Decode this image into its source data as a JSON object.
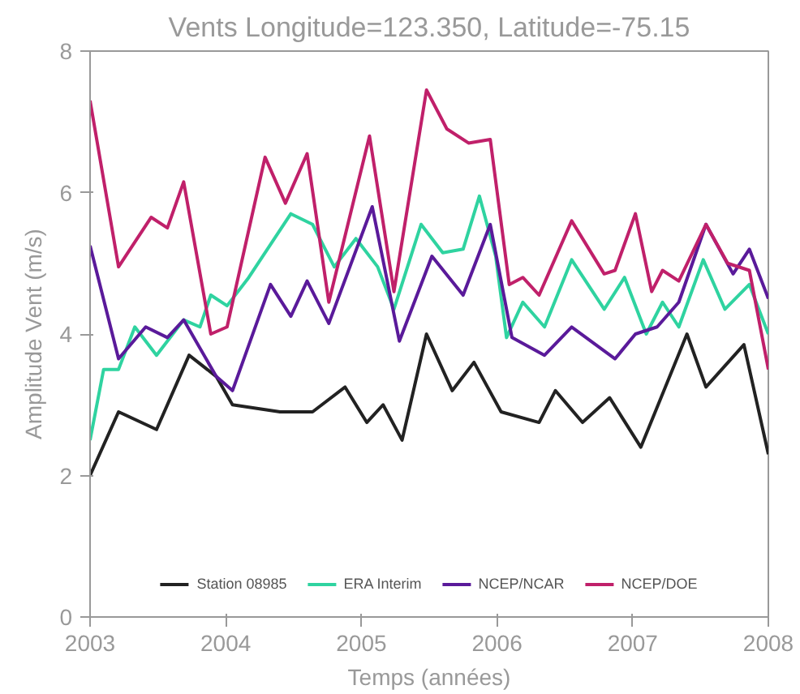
{
  "chart_data": {
    "type": "line",
    "title": "Vents Longitude=123.350, Latitude=-75.15",
    "xlabel": "Temps (années)",
    "ylabel": "Amplitude Vent (m/s)",
    "xlim": [
      2003,
      2008
    ],
    "xticks": [
      2003,
      2004,
      2005,
      2006,
      2007,
      2008
    ],
    "ylim": [
      0,
      8
    ],
    "yticks": [
      0,
      2,
      4,
      6,
      8
    ],
    "grid": false,
    "legend": "bottom",
    "marker": "none",
    "line_style": "solid",
    "series": [
      {
        "name": "Station 08985",
        "color": "#222222",
        "x": [
          2003.0,
          2003.21,
          2003.49,
          2003.73,
          2003.93,
          2004.05,
          2004.4,
          2004.64,
          2004.88,
          2005.04,
          2005.16,
          2005.3,
          2005.48,
          2005.67,
          2005.83,
          2006.03,
          2006.31,
          2006.43,
          2006.63,
          2006.83,
          2007.06,
          2007.4,
          2007.54,
          2007.82,
          2008.0
        ],
        "values": [
          2.0,
          2.9,
          2.65,
          3.7,
          3.4,
          3.0,
          2.9,
          2.9,
          3.25,
          2.75,
          3.0,
          2.5,
          4.0,
          3.2,
          3.6,
          2.9,
          2.75,
          3.2,
          2.75,
          3.1,
          2.4,
          4.0,
          3.25,
          3.85,
          2.3
        ]
      },
      {
        "name": "ERA Interim",
        "color": "#2fd3a0",
        "x": [
          2003.0,
          2003.1,
          2003.21,
          2003.33,
          2003.49,
          2003.69,
          2003.81,
          2003.89,
          2004.01,
          2004.17,
          2004.48,
          2004.64,
          2004.8,
          2004.96,
          2005.12,
          2005.24,
          2005.44,
          2005.6,
          2005.75,
          2005.87,
          2005.99,
          2006.07,
          2006.19,
          2006.35,
          2006.55,
          2006.79,
          2006.94,
          2007.1,
          2007.22,
          2007.34,
          2007.52,
          2007.68,
          2007.86,
          2008.0
        ],
        "values": [
          2.5,
          3.5,
          3.5,
          4.1,
          3.7,
          4.2,
          4.1,
          4.55,
          4.4,
          4.8,
          5.7,
          5.55,
          4.95,
          5.35,
          4.95,
          4.35,
          5.55,
          5.15,
          5.2,
          5.95,
          5.1,
          3.95,
          4.45,
          4.1,
          5.05,
          4.35,
          4.8,
          4.0,
          4.45,
          4.1,
          5.05,
          4.35,
          4.7,
          4.0
        ]
      },
      {
        "name": "NCEP/NCAR",
        "color": "#5a1a9a",
        "x": [
          2003.0,
          2003.21,
          2003.41,
          2003.57,
          2003.69,
          2003.93,
          2004.05,
          2004.33,
          2004.48,
          2004.6,
          2004.76,
          2005.08,
          2005.28,
          2005.52,
          2005.75,
          2005.95,
          2006.11,
          2006.35,
          2006.55,
          2006.87,
          2007.02,
          2007.18,
          2007.34,
          2007.54,
          2007.74,
          2007.86,
          2008.0
        ],
        "values": [
          5.25,
          3.65,
          4.1,
          3.95,
          4.2,
          3.4,
          3.2,
          4.7,
          4.25,
          4.75,
          4.15,
          5.8,
          3.9,
          5.1,
          4.55,
          5.55,
          3.95,
          3.7,
          4.1,
          3.65,
          4.0,
          4.1,
          4.45,
          5.55,
          4.85,
          5.2,
          4.5
        ]
      },
      {
        "name": "NCEP/DOE",
        "color": "#c0206a",
        "x": [
          2003.0,
          2003.21,
          2003.45,
          2003.57,
          2003.69,
          2003.89,
          2004.01,
          2004.29,
          2004.44,
          2004.6,
          2004.76,
          2005.06,
          2005.24,
          2005.48,
          2005.63,
          2005.79,
          2005.95,
          2006.09,
          2006.19,
          2006.31,
          2006.55,
          2006.79,
          2006.87,
          2007.02,
          2007.14,
          2007.22,
          2007.34,
          2007.54,
          2007.7,
          2007.86,
          2008.0
        ],
        "values": [
          7.3,
          4.95,
          5.65,
          5.5,
          6.15,
          4.0,
          4.1,
          6.5,
          5.85,
          6.55,
          4.45,
          6.8,
          4.6,
          7.45,
          6.9,
          6.7,
          6.75,
          4.7,
          4.8,
          4.55,
          5.6,
          4.85,
          4.9,
          5.7,
          4.6,
          4.9,
          4.75,
          5.55,
          5.0,
          4.9,
          3.5
        ]
      }
    ]
  }
}
